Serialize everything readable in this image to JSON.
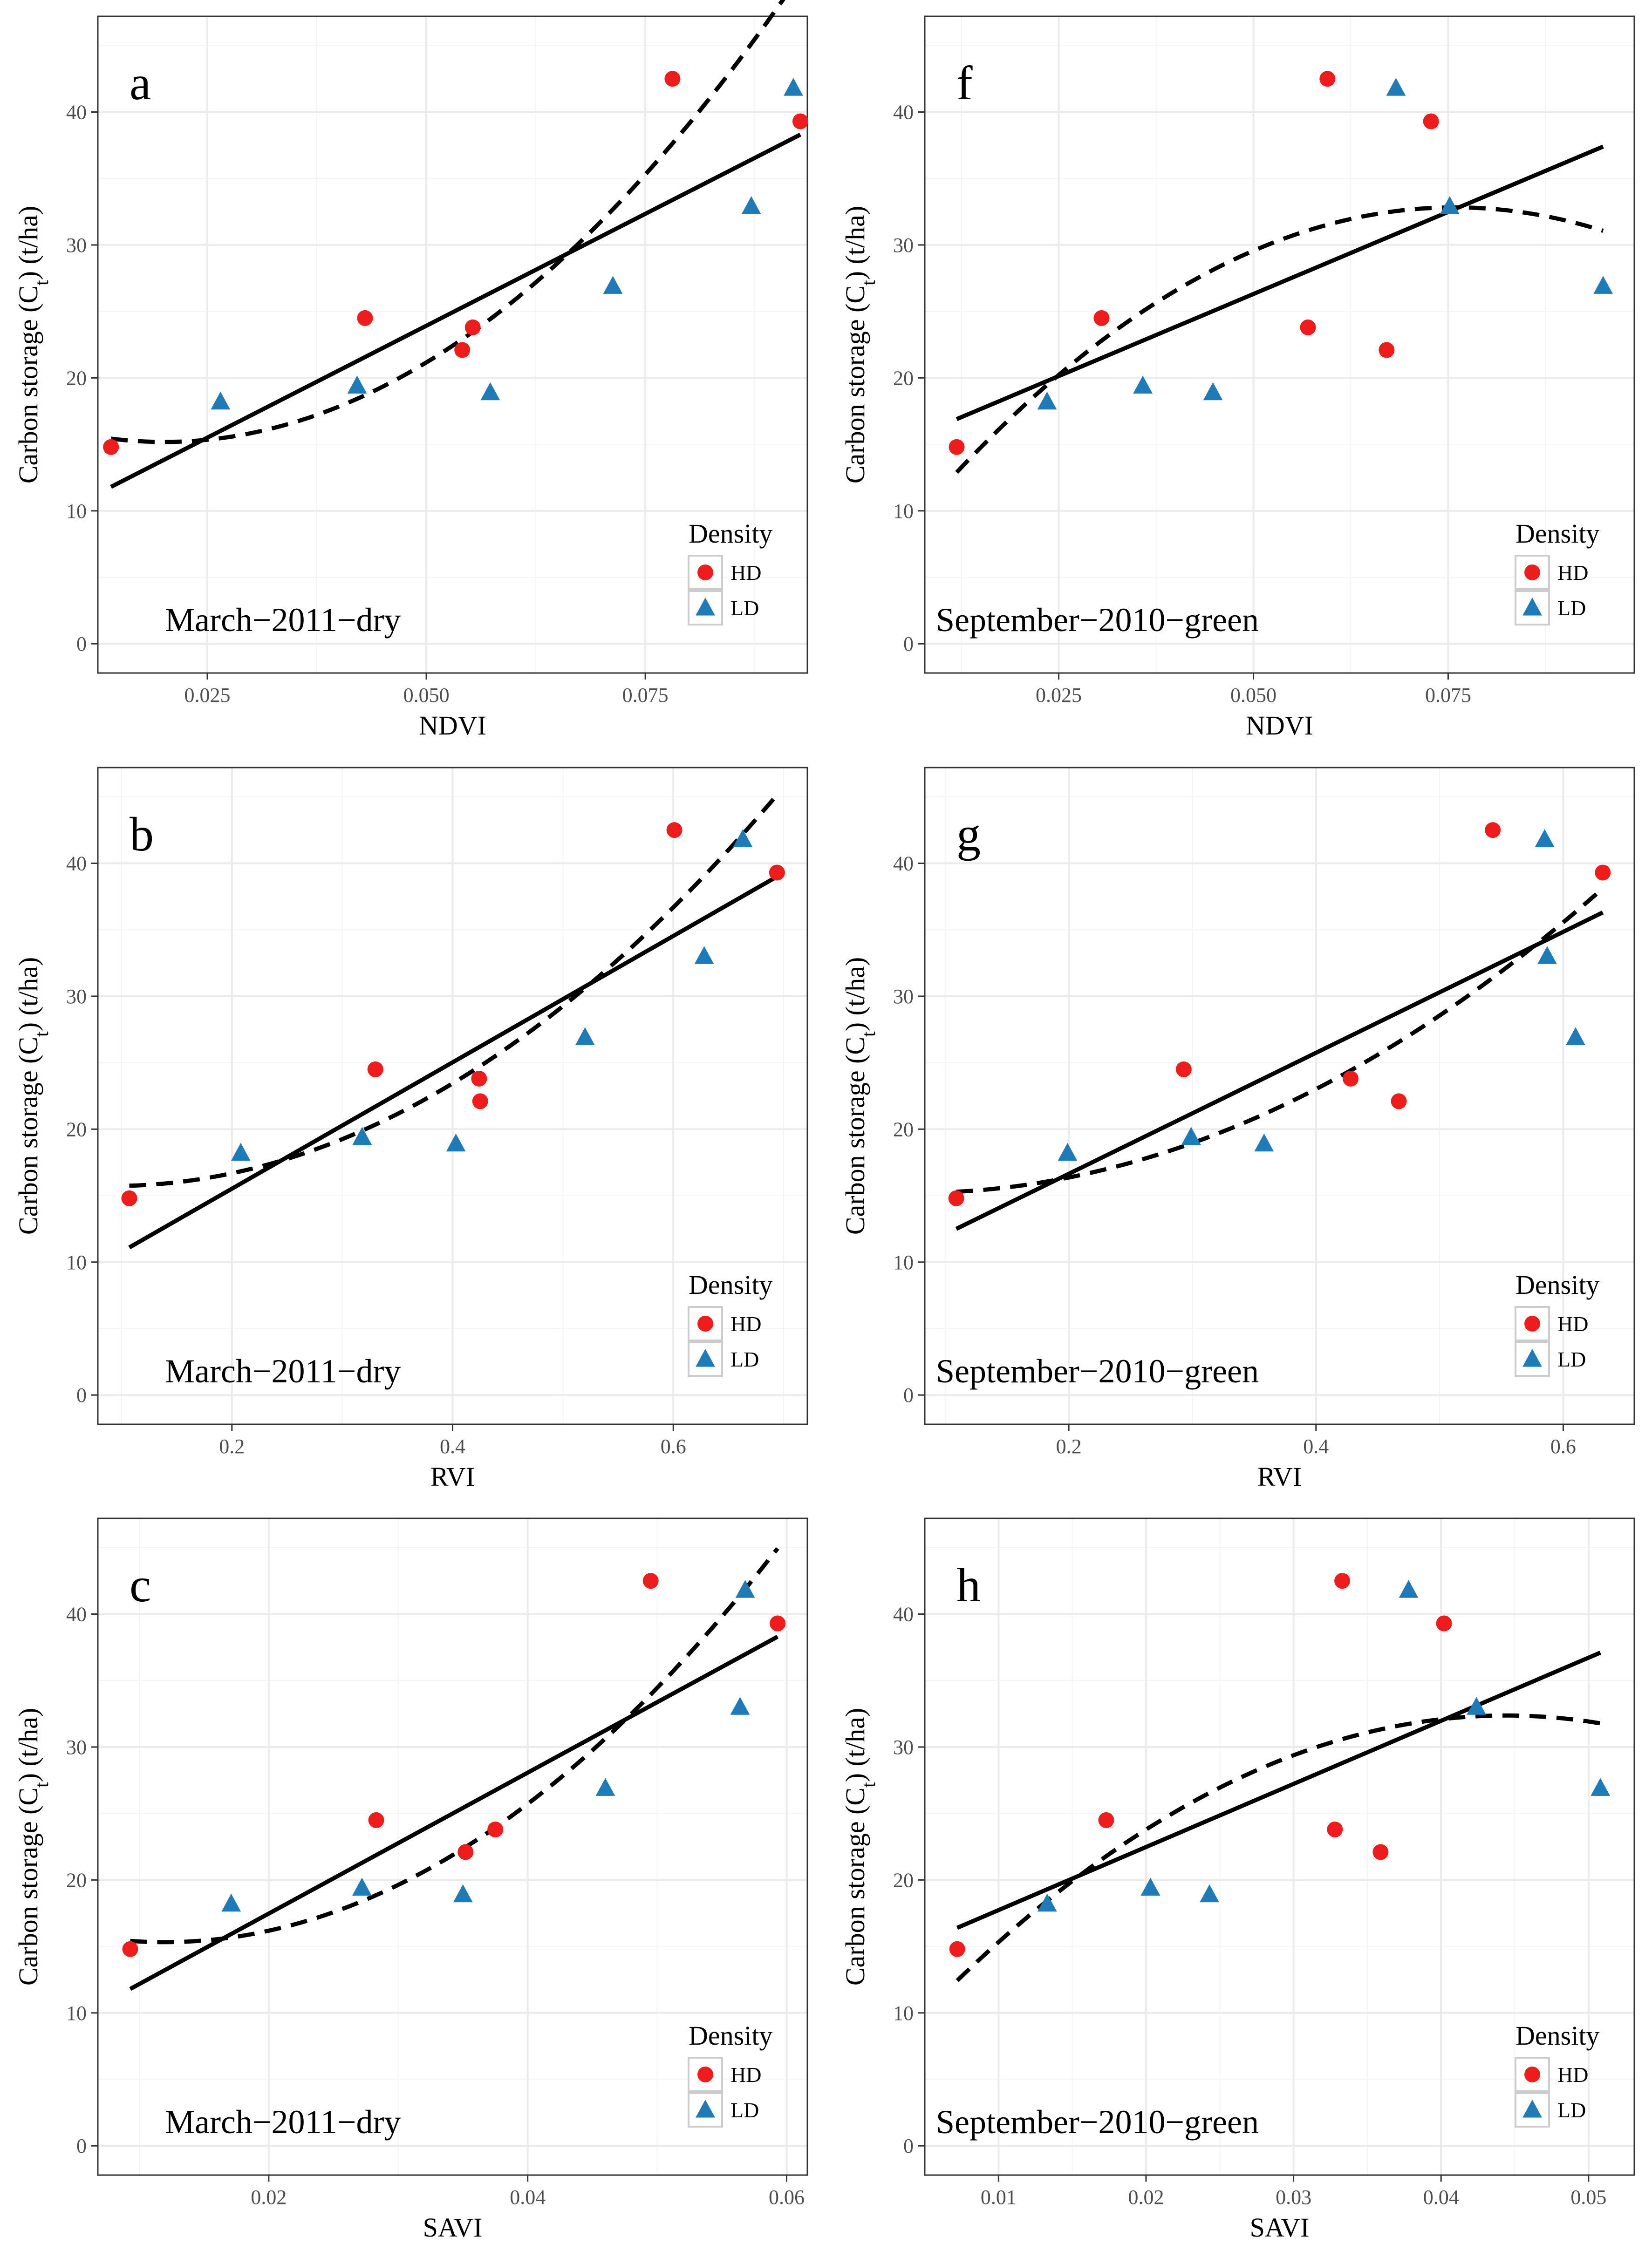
{
  "colors": {
    "HD": "#ee1c1c",
    "LD": "#1f7ab8"
  },
  "legend": {
    "title": "Density",
    "labels": [
      "HD",
      "LD"
    ]
  },
  "chart_data": [
    {
      "id": "a",
      "type": "scatter",
      "label": "a",
      "subtitle": "March−2011−dry",
      "xlabel": "NDVI",
      "ylabel": "Carbon storage (C",
      "ylabel_sub": "t",
      "ylabel_end": ") (t/ha)",
      "xlim": [
        0.0125,
        0.0935
      ],
      "ylim": [
        -2.2,
        47.2
      ],
      "xticks": [
        0.025,
        0.05,
        0.075
      ],
      "xtick_labels": [
        "0.025",
        "0.050",
        "0.075"
      ],
      "yticks": [
        0,
        10,
        20,
        30,
        40
      ],
      "ytick_labels": [
        "0",
        "10",
        "20",
        "30",
        "40"
      ],
      "series": [
        {
          "name": "HD",
          "marker": "circle",
          "points": [
            [
              0.014,
              14.8
            ],
            [
              0.043,
              24.5
            ],
            [
              0.0541,
              22.1
            ],
            [
              0.0553,
              23.8
            ],
            [
              0.0781,
              42.5
            ],
            [
              0.0927,
              39.3
            ]
          ]
        },
        {
          "name": "LD",
          "marker": "triangle",
          "points": [
            [
              0.0265,
              18.2
            ],
            [
              0.0421,
              19.4
            ],
            [
              0.0573,
              18.9
            ],
            [
              0.0713,
              26.9
            ],
            [
              0.0871,
              32.9
            ],
            [
              0.0919,
              41.8
            ]
          ]
        }
      ],
      "linear_fit": [
        [
          0.014,
          11.8
        ],
        [
          0.0927,
          38.3
        ]
      ],
      "poly_fit": {
        "x_range": [
          0.014,
          0.0927
        ],
        "coef": [
          17.86,
          -267.0,
          6660.0
        ]
      }
    },
    {
      "id": "b",
      "type": "scatter",
      "label": "b",
      "subtitle": "March−2011−dry",
      "xlabel": "RVI",
      "ylabel": "Carbon storage (C",
      "ylabel_sub": "t",
      "ylabel_end": ") (t/ha)",
      "xlim": [
        0.0785,
        0.7215
      ],
      "ylim": [
        -2.2,
        47.2
      ],
      "xticks": [
        0.2,
        0.4,
        0.6
      ],
      "xtick_labels": [
        "0.2",
        "0.4",
        "0.6"
      ],
      "yticks": [
        0,
        10,
        20,
        30,
        40
      ],
      "ytick_labels": [
        "0",
        "10",
        "20",
        "30",
        "40"
      ],
      "series": [
        {
          "name": "HD",
          "marker": "circle",
          "points": [
            [
              0.107,
              14.8
            ],
            [
              0.33,
              24.5
            ],
            [
              0.424,
              23.8
            ],
            [
              0.425,
              22.1
            ],
            [
              0.601,
              42.5
            ],
            [
              0.694,
              39.3
            ]
          ]
        },
        {
          "name": "LD",
          "marker": "triangle",
          "points": [
            [
              0.208,
              18.2
            ],
            [
              0.318,
              19.4
            ],
            [
              0.403,
              18.9
            ],
            [
              0.52,
              26.9
            ],
            [
              0.628,
              33.0
            ],
            [
              0.663,
              41.8
            ]
          ]
        }
      ],
      "linear_fit": [
        [
          0.107,
          11.1
        ],
        [
          0.694,
          39.0
        ]
      ],
      "poly_fit": {
        "x_range": [
          0.107,
          0.694
        ],
        "coef": [
          16.4,
          -14.8,
          81.0
        ]
      }
    },
    {
      "id": "c",
      "type": "scatter",
      "label": "c",
      "subtitle": "March−2011−dry",
      "xlabel": "SAVI",
      "ylabel": "Carbon storage (C",
      "ylabel_sub": "t",
      "ylabel_end": ") (t/ha)",
      "xlim": [
        0.0068,
        0.0616
      ],
      "ylim": [
        -2.2,
        47.2
      ],
      "xticks": [
        0.02,
        0.04,
        0.06
      ],
      "xtick_labels": [
        "0.02",
        "0.04",
        "0.06"
      ],
      "yticks": [
        0,
        10,
        20,
        30,
        40
      ],
      "ytick_labels": [
        "0",
        "10",
        "20",
        "30",
        "40"
      ],
      "series": [
        {
          "name": "HD",
          "marker": "circle",
          "points": [
            [
              0.0093,
              14.8
            ],
            [
              0.0283,
              24.5
            ],
            [
              0.0352,
              22.1
            ],
            [
              0.0375,
              23.8
            ],
            [
              0.0495,
              42.5
            ],
            [
              0.0593,
              39.3
            ]
          ]
        },
        {
          "name": "LD",
          "marker": "triangle",
          "points": [
            [
              0.0171,
              18.2
            ],
            [
              0.0272,
              19.4
            ],
            [
              0.035,
              18.9
            ],
            [
              0.046,
              26.9
            ],
            [
              0.0564,
              33.0
            ],
            [
              0.0568,
              41.8
            ]
          ]
        }
      ],
      "linear_fit": [
        [
          0.0093,
          11.8
        ],
        [
          0.0593,
          38.3
        ]
      ],
      "poly_fit": {
        "x_range": [
          0.0093,
          0.0593
        ],
        "coef": [
          17.2,
          -315.0,
          13200.0
        ]
      }
    },
    {
      "id": "f",
      "type": "scatter",
      "label": "f",
      "subtitle": "September−2010−green",
      "xlabel": "NDVI",
      "ylabel": "Carbon storage (C",
      "ylabel_sub": "t",
      "ylabel_end": ") (t/ha)",
      "xlim": [
        0.0078,
        0.0989
      ],
      "ylim": [
        -2.2,
        47.2
      ],
      "xticks": [
        0.025,
        0.05,
        0.075
      ],
      "xtick_labels": [
        "0.025",
        "0.050",
        "0.075"
      ],
      "yticks": [
        0,
        10,
        20,
        30,
        40
      ],
      "ytick_labels": [
        "0",
        "10",
        "20",
        "30",
        "40"
      ],
      "series": [
        {
          "name": "HD",
          "marker": "circle",
          "points": [
            [
              0.0119,
              14.8
            ],
            [
              0.0305,
              24.5
            ],
            [
              0.057,
              23.8
            ],
            [
              0.0595,
              42.5
            ],
            [
              0.0671,
              22.1
            ],
            [
              0.0728,
              39.3
            ]
          ]
        },
        {
          "name": "LD",
          "marker": "triangle",
          "points": [
            [
              0.0235,
              18.2
            ],
            [
              0.0358,
              19.4
            ],
            [
              0.0448,
              18.9
            ],
            [
              0.0683,
              41.8
            ],
            [
              0.0752,
              32.9
            ],
            [
              0.0949,
              26.9
            ]
          ]
        }
      ],
      "linear_fit": [
        [
          0.0119,
          16.9
        ],
        [
          0.0949,
          37.4
        ]
      ],
      "poly_fit": {
        "x_range": [
          0.0119,
          0.0949
        ],
        "coef": [
          4.79,
          739.0,
          -4870.0
        ]
      }
    },
    {
      "id": "g",
      "type": "scatter",
      "label": "g",
      "subtitle": "September−2010−green",
      "xlabel": "RVI",
      "ylabel": "Carbon storage (C",
      "ylabel_sub": "t",
      "ylabel_end": ") (t/ha)",
      "xlim": [
        0.0835,
        0.6575
      ],
      "ylim": [
        -2.2,
        47.2
      ],
      "xticks": [
        0.2,
        0.4,
        0.6
      ],
      "xtick_labels": [
        "0.2",
        "0.4",
        "0.6"
      ],
      "yticks": [
        0,
        10,
        20,
        30,
        40
      ],
      "ytick_labels": [
        "0",
        "10",
        "20",
        "30",
        "40"
      ],
      "series": [
        {
          "name": "HD",
          "marker": "circle",
          "points": [
            [
              0.109,
              14.8
            ],
            [
              0.293,
              24.5
            ],
            [
              0.428,
              23.8
            ],
            [
              0.467,
              22.1
            ],
            [
              0.543,
              42.5
            ],
            [
              0.632,
              39.3
            ]
          ]
        },
        {
          "name": "LD",
          "marker": "triangle",
          "points": [
            [
              0.199,
              18.2
            ],
            [
              0.299,
              19.4
            ],
            [
              0.358,
              18.9
            ],
            [
              0.585,
              41.8
            ],
            [
              0.587,
              33.0
            ],
            [
              0.61,
              26.9
            ]
          ]
        }
      ],
      "linear_fit": [
        [
          0.109,
          12.5
        ],
        [
          0.632,
          36.3
        ]
      ],
      "poly_fit": {
        "x_range": [
          0.109,
          0.632
        ],
        "coef": [
          15.6,
          -10.9,
          73.6
        ]
      }
    },
    {
      "id": "h",
      "type": "scatter",
      "label": "h",
      "subtitle": "September−2010−green",
      "xlabel": "SAVI",
      "ylabel": "Carbon storage (C",
      "ylabel_sub": "t",
      "ylabel_end": ") (t/ha)",
      "xlim": [
        0.005,
        0.0531
      ],
      "ylim": [
        -2.2,
        47.2
      ],
      "xticks": [
        0.01,
        0.02,
        0.03,
        0.04,
        0.05
      ],
      "xtick_labels": [
        "0.01",
        "0.02",
        "0.03",
        "0.04",
        "0.05"
      ],
      "yticks": [
        0,
        10,
        20,
        30,
        40
      ],
      "ytick_labels": [
        "0",
        "10",
        "20",
        "30",
        "40"
      ],
      "series": [
        {
          "name": "HD",
          "marker": "circle",
          "points": [
            [
              0.0072,
              14.8
            ],
            [
              0.0173,
              24.5
            ],
            [
              0.0328,
              23.8
            ],
            [
              0.0333,
              42.5
            ],
            [
              0.0359,
              22.1
            ],
            [
              0.0402,
              39.3
            ]
          ]
        },
        {
          "name": "LD",
          "marker": "triangle",
          "points": [
            [
              0.0133,
              18.2
            ],
            [
              0.0203,
              19.4
            ],
            [
              0.0243,
              18.9
            ],
            [
              0.0378,
              41.8
            ],
            [
              0.0424,
              33.0
            ],
            [
              0.0508,
              26.9
            ]
          ]
        }
      ],
      "linear_fit": [
        [
          0.0072,
          16.4
        ],
        [
          0.0508,
          37.1
        ]
      ],
      "poly_fit": {
        "x_range": [
          0.0072,
          0.0508
        ],
        "coef": [
          3.97,
          1279.0,
          -14400.0
        ]
      }
    }
  ]
}
